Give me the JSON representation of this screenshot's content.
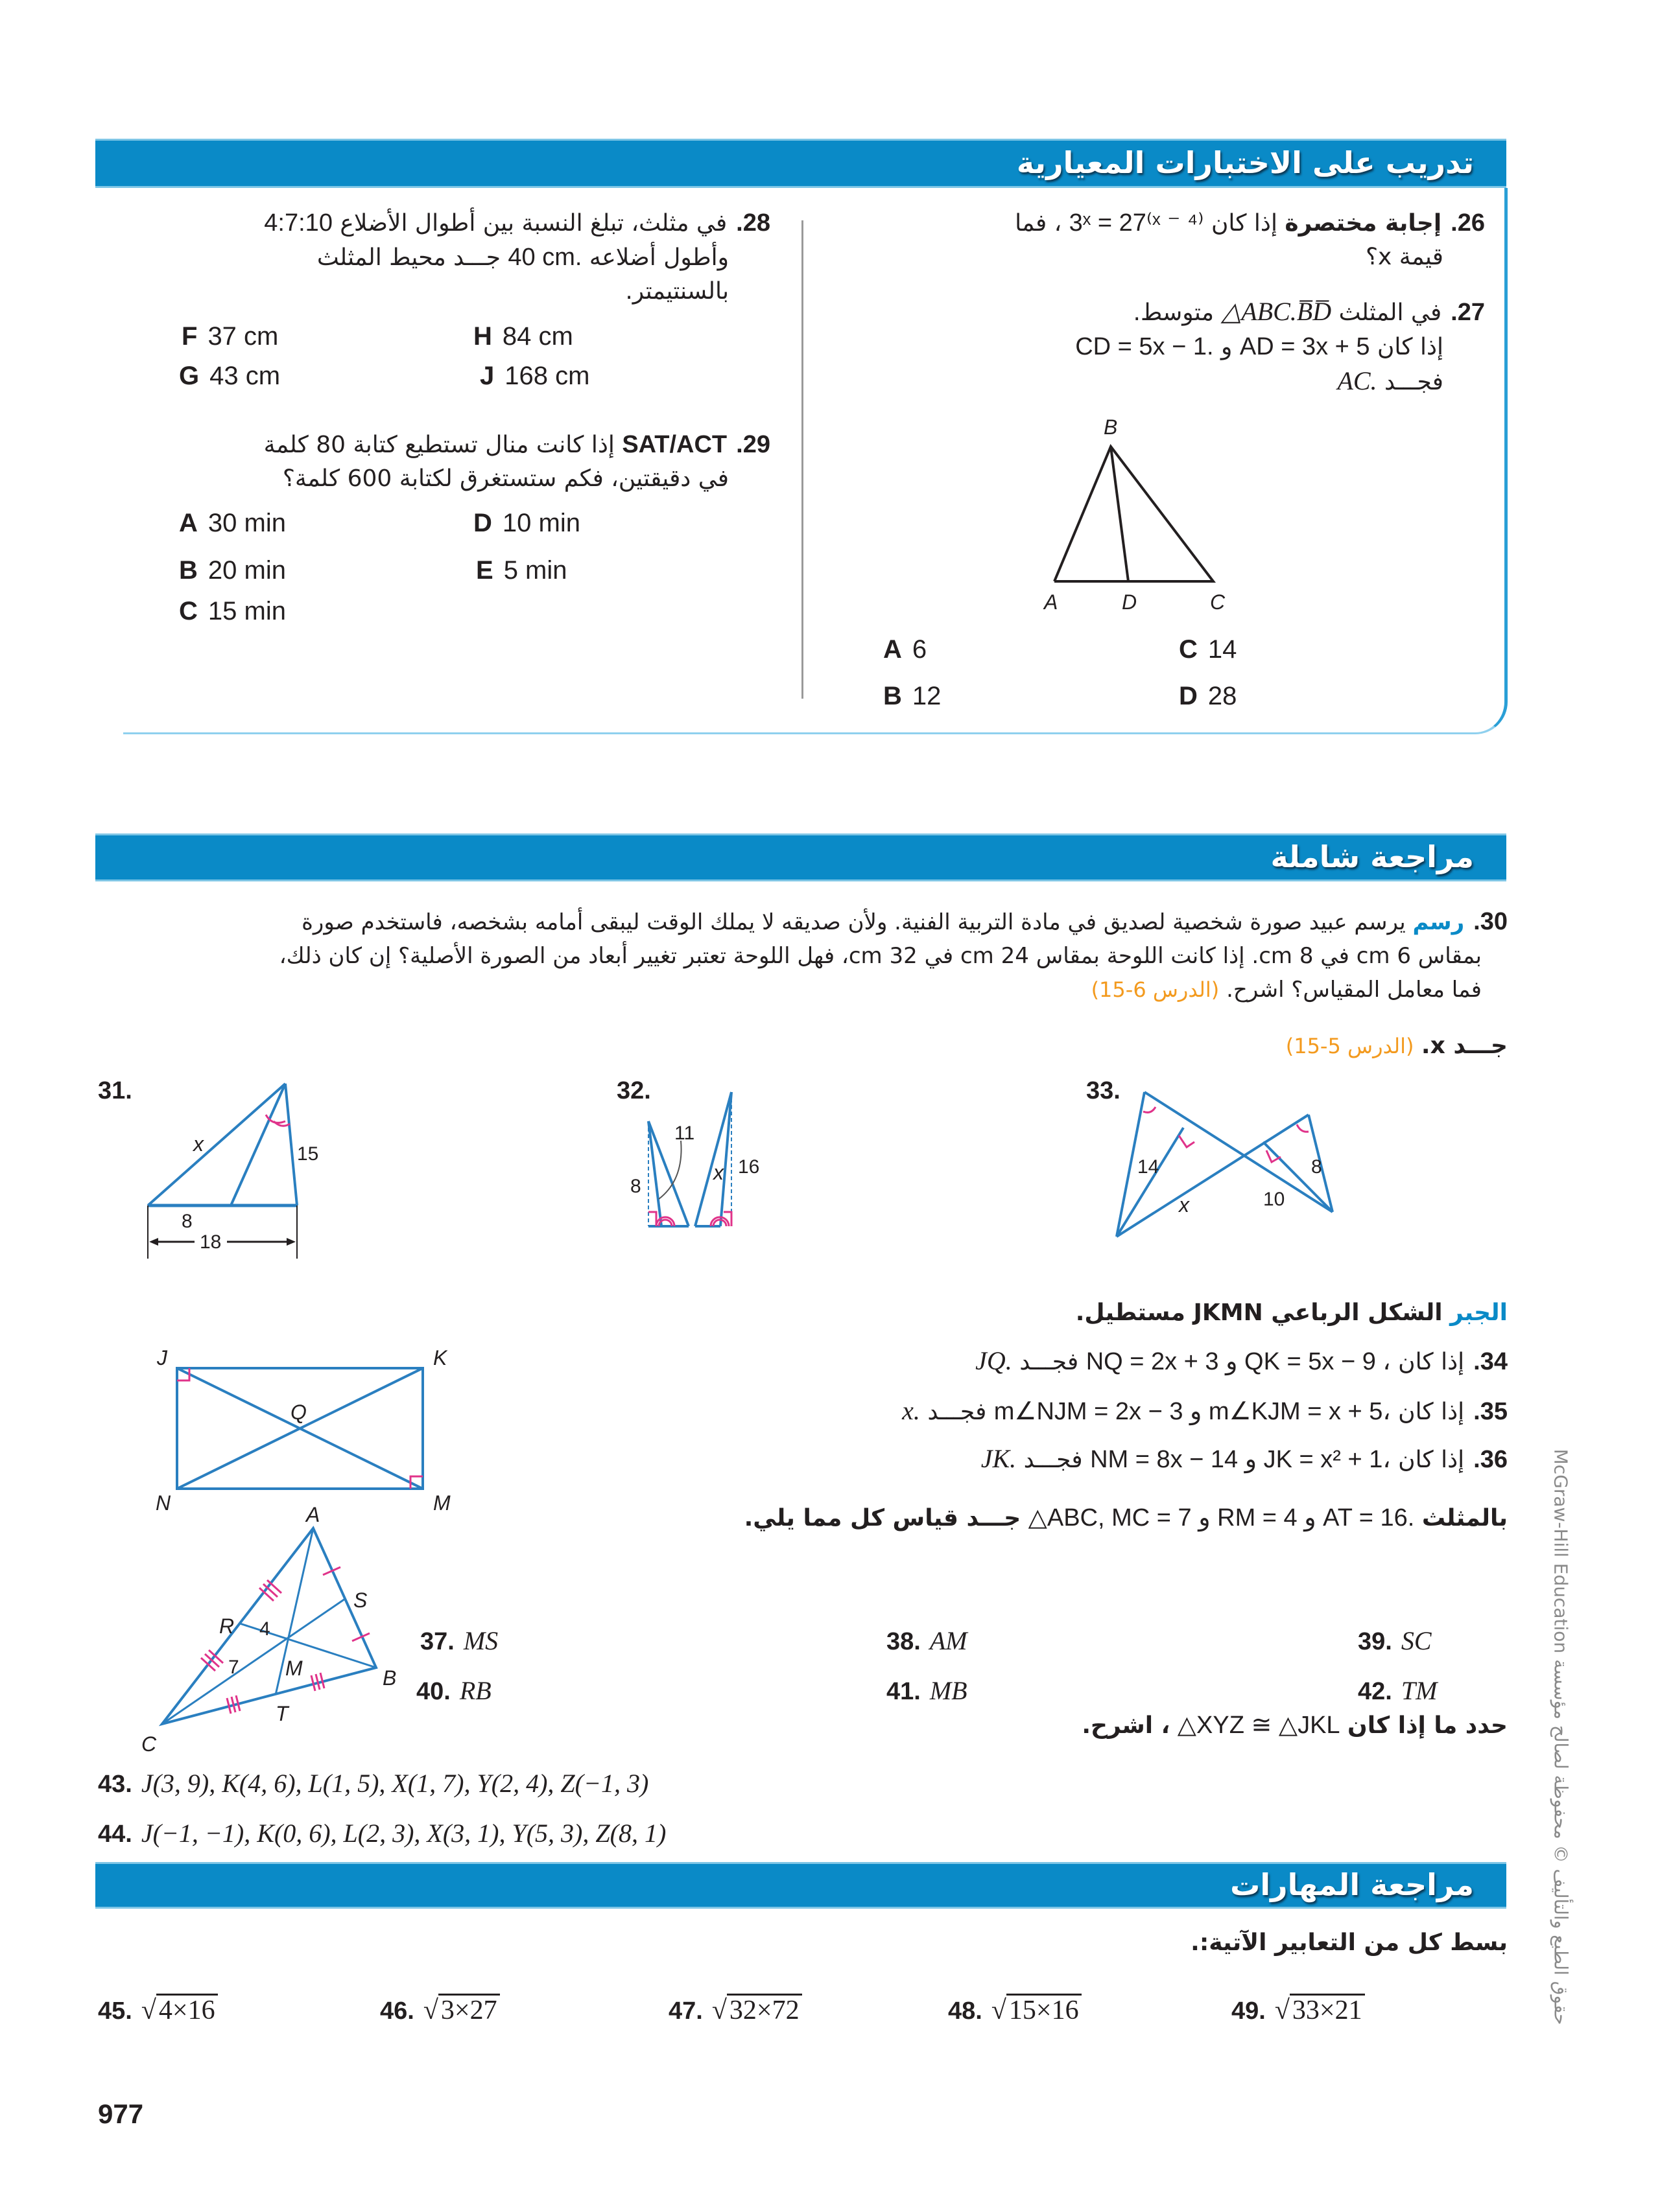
{
  "section1": {
    "title": "تدريب على الاختبارات المعيارية",
    "q26": {
      "num": "26.",
      "lead": "إجابة مختصرة",
      "ar1": "إذا كان",
      "math": "3ˣ = 27⁽ˣ ⁻ ⁴⁾",
      "ar2": "، فما",
      "line2": "قيمة x؟"
    },
    "q27": {
      "num": "27.",
      "ar1": "في المثلث",
      "math1": "△ABC.B̅D̅",
      "ar2": "متوسط.",
      "ar3": "إذا كان",
      "math2": "AD = 3x + 5",
      "and": "و",
      "math3": "CD = 5x − 1.",
      "ar4": "فجـــد",
      "math4": "AC."
    },
    "q27_figure": {
      "labels": {
        "A": "A",
        "B": "B",
        "C": "C",
        "D": "D"
      }
    },
    "q27_choices": [
      {
        "letter": "A",
        "value": "6"
      },
      {
        "letter": "B",
        "value": "12"
      },
      {
        "letter": "C",
        "value": "14"
      },
      {
        "letter": "D",
        "value": "28"
      }
    ],
    "q28": {
      "num": "28.",
      "line1": "في مثلث، تبلغ النسبة بين أطوال الأضلاع",
      "ratio": "4:7:10",
      "ar2": "وأطول أضلاعه",
      "math2": "40 cm.",
      "ar3": "جـــد محيط المثلث",
      "line3": "بالسنتيمتر."
    },
    "q28_choices": [
      {
        "letter": "F",
        "value": "37 cm"
      },
      {
        "letter": "G",
        "value": "43 cm"
      },
      {
        "letter": "H",
        "value": "84 cm"
      },
      {
        "letter": "J",
        "value": "168 cm"
      }
    ],
    "q29": {
      "num": "29.",
      "lead": "SAT/ACT",
      "line1": "إذا كانت منال تستطيع كتابة 80 كلمة",
      "line2": "في دقيقتين، فكم ستستغرق لكتابة 600 كلمة؟"
    },
    "q29_choices": [
      {
        "letter": "A",
        "value": "30 min"
      },
      {
        "letter": "B",
        "value": "20 min"
      },
      {
        "letter": "C",
        "value": "15 min"
      },
      {
        "letter": "D",
        "value": "10 min"
      },
      {
        "letter": "E",
        "value": "5 min"
      }
    ]
  },
  "section2": {
    "title": "مراجعة شاملة",
    "q30": {
      "num": "30.",
      "lead": "رسم",
      "line1": "يرسم عبيد صورة شخصية لصديق في مادة التربية الفنية. ولأن صديقه لا يملك الوقت ليبقى أمامه بشخصه، فاستخدم صورة",
      "line2": "بمقاس 6 cm في 8 cm. إذا كانت اللوحة بمقاس 24 cm في 32 cm، فهل اللوحة تعتبر تغيير أبعاد من الصورة الأصلية؟ إن كان ذلك،",
      "line3": "فما معامل المقياس؟ اشرح.",
      "ref": "(الدرس 6-15)"
    },
    "find_x": {
      "text": "جـــد x.",
      "ref": "(الدرس 5-15)"
    },
    "figures": [
      {
        "num": "31.",
        "labels": [
          "x",
          "15",
          "8",
          "18"
        ]
      },
      {
        "num": "32.",
        "labels": [
          "11",
          "8",
          "x",
          "16"
        ]
      },
      {
        "num": "33.",
        "labels": [
          "14",
          "8",
          "x",
          "10"
        ]
      }
    ],
    "algebra": {
      "tag": "الجبر",
      "text": "الشكل الرباعي JKMN مستطيل."
    },
    "rect_labels": {
      "J": "J",
      "K": "K",
      "M": "M",
      "N": "N",
      "Q": "Q"
    },
    "q34": {
      "num": "34.",
      "ar": "إذا كان",
      "math": "NQ = 2x + 3 و QK = 5x − 9 ،",
      "find": "فجـــد",
      "target": "JQ."
    },
    "q35": {
      "num": "35.",
      "ar": "إذا كان",
      "math": "m∠NJM = 2x − 3 و m∠KJM = x + 5،",
      "find": "فجـــد",
      "target": "x."
    },
    "q36": {
      "num": "36.",
      "ar": "إذا كان",
      "math": "NM = 8x − 14 و JK = x² + 1،",
      "find": "فجـــد",
      "target": "JK."
    },
    "triangle_stem": {
      "ar1": "بالمثلث",
      "math": "△ABC, MC = 7 و RM = 4 و AT = 16.",
      "ar2": "جـــد قياس كل مما يلي."
    },
    "tri_labels": {
      "A": "A",
      "B": "B",
      "C": "C",
      "R": "R",
      "S": "S",
      "T": "T",
      "M": "M",
      "four": "4",
      "seven": "7"
    },
    "measures": [
      {
        "num": "37.",
        "value": "MS"
      },
      {
        "num": "38.",
        "value": "AM"
      },
      {
        "num": "39.",
        "value": "SC"
      },
      {
        "num": "40.",
        "value": "RB"
      },
      {
        "num": "41.",
        "value": "MB"
      },
      {
        "num": "42.",
        "value": "TM"
      }
    ],
    "congruence_stem": {
      "ar1": "حدد ما إذا كان",
      "math": "△XYZ ≅ △JKL",
      "ar2": "، اشرح."
    },
    "q43": {
      "num": "43.",
      "value": "J(3, 9), K(4, 6), L(1, 5), X(1, 7), Y(2, 4), Z(−1, 3)"
    },
    "q44": {
      "num": "44.",
      "value": "J(−1, −1), K(0, 6), L(2, 3), X(3, 1), Y(5, 3), Z(8, 1)"
    }
  },
  "section3": {
    "title": "مراجعة المهارات",
    "instruction": "بسط كل من التعابير الآتية:.",
    "exercises": [
      {
        "num": "45.",
        "radicand": "4×16"
      },
      {
        "num": "46.",
        "radicand": "3×27"
      },
      {
        "num": "47.",
        "radicand": "32×72"
      },
      {
        "num": "48.",
        "radicand": "15×16"
      },
      {
        "num": "49.",
        "radicand": "33×21"
      }
    ]
  },
  "footer": {
    "page_number": "977",
    "copyright": "حقوق الطبع والتأليف © محفوظة لصالح مؤسسة McGraw-Hill Education"
  },
  "colors": {
    "header_blue": "#0a8ac7",
    "lesson_ref_orange": "#f39a1e",
    "tick_magenta": "#e0338a",
    "figure_blue": "#2a7fc0"
  }
}
